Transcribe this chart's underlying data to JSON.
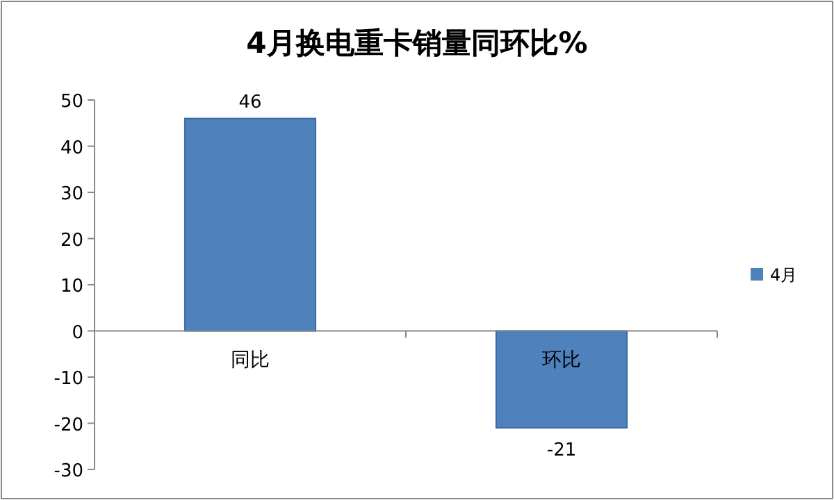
{
  "chart_data": {
    "type": "bar",
    "title": "4月换电重卡销量同环比%",
    "categories": [
      "同比",
      "环比"
    ],
    "series": [
      {
        "name": "4月",
        "color": "#4f81bd",
        "values": [
          46,
          -21
        ]
      }
    ],
    "ylim": [
      -30,
      50
    ],
    "yticks": [
      -30,
      -20,
      -10,
      0,
      10,
      20,
      30,
      40,
      50
    ],
    "legend": "right",
    "data_labels": true
  }
}
